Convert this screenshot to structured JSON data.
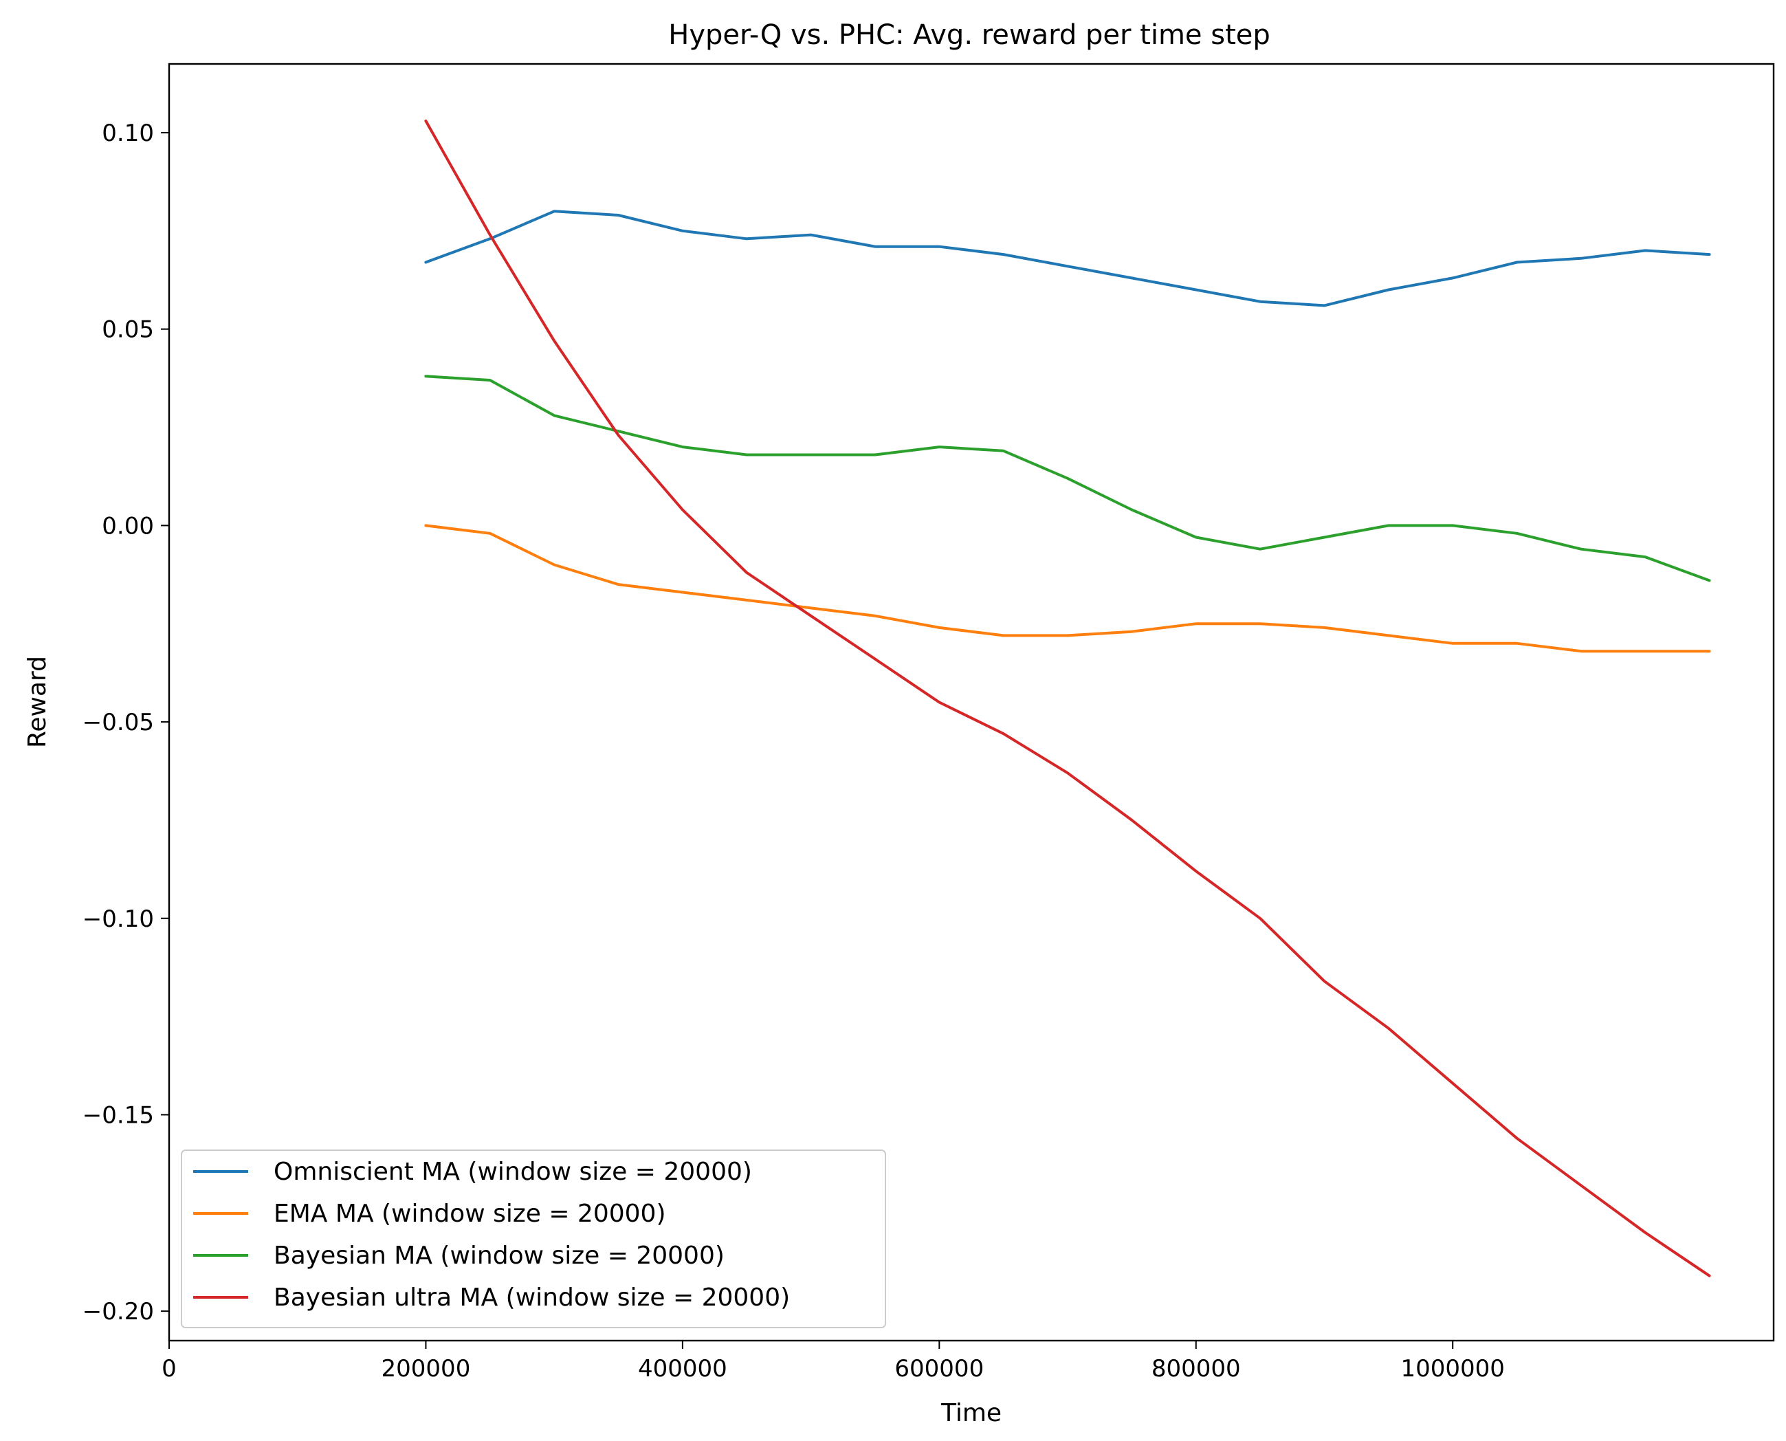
{
  "chart_data": {
    "type": "line",
    "title": "Hyper-Q vs. PHC: Avg. reward per time step",
    "xlabel": "Time",
    "ylabel": "Reward",
    "xlim": [
      0,
      1250000
    ],
    "ylim": [
      -0.2075,
      0.1175
    ],
    "xticks": [
      0,
      200000,
      400000,
      600000,
      800000,
      1000000
    ],
    "xtick_labels": [
      "0",
      "200000",
      "400000",
      "600000",
      "800000",
      "1000000"
    ],
    "yticks": [
      0.1,
      0.05,
      0.0,
      -0.05,
      -0.1,
      -0.15,
      -0.2
    ],
    "ytick_labels": [
      "0.10",
      "0.05",
      "0.00",
      "−0.05",
      "−0.10",
      "−0.15",
      "−0.20"
    ],
    "grid": false,
    "legend_position": "lower-left",
    "x": [
      200000,
      250000,
      300000,
      350000,
      400000,
      450000,
      500000,
      550000,
      600000,
      650000,
      700000,
      750000,
      800000,
      850000,
      900000,
      950000,
      1000000,
      1050000,
      1100000,
      1150000,
      1200000
    ],
    "series": [
      {
        "name": "Omniscient MA (window size = 20000)",
        "color": "#1f77b4",
        "values": [
          0.067,
          0.073,
          0.08,
          0.079,
          0.075,
          0.073,
          0.074,
          0.071,
          0.071,
          0.069,
          0.066,
          0.063,
          0.06,
          0.057,
          0.056,
          0.06,
          0.063,
          0.067,
          0.068,
          0.07,
          0.069
        ]
      },
      {
        "name": "EMA MA (window size = 20000)",
        "color": "#ff7f0e",
        "values": [
          -0.0,
          -0.002,
          -0.01,
          -0.015,
          -0.017,
          -0.019,
          -0.021,
          -0.023,
          -0.026,
          -0.028,
          -0.028,
          -0.027,
          -0.025,
          -0.025,
          -0.026,
          -0.028,
          -0.03,
          -0.03,
          -0.032,
          -0.032,
          -0.032
        ]
      },
      {
        "name": "Bayesian MA (window size = 20000)",
        "color": "#2ca02c",
        "values": [
          0.038,
          0.037,
          0.028,
          0.024,
          0.02,
          0.018,
          0.018,
          0.018,
          0.02,
          0.019,
          0.012,
          0.004,
          -0.003,
          -0.006,
          -0.003,
          0.0,
          0.0,
          -0.002,
          -0.006,
          -0.008,
          -0.014
        ]
      },
      {
        "name": "Bayesian ultra MA (window size = 20000)",
        "color": "#d62728",
        "values": [
          0.103,
          0.074,
          0.047,
          0.023,
          0.004,
          -0.012,
          -0.023,
          -0.034,
          -0.045,
          -0.053,
          -0.063,
          -0.075,
          -0.088,
          -0.1,
          -0.116,
          -0.128,
          -0.142,
          -0.156,
          -0.168,
          -0.18,
          -0.191
        ]
      }
    ]
  }
}
